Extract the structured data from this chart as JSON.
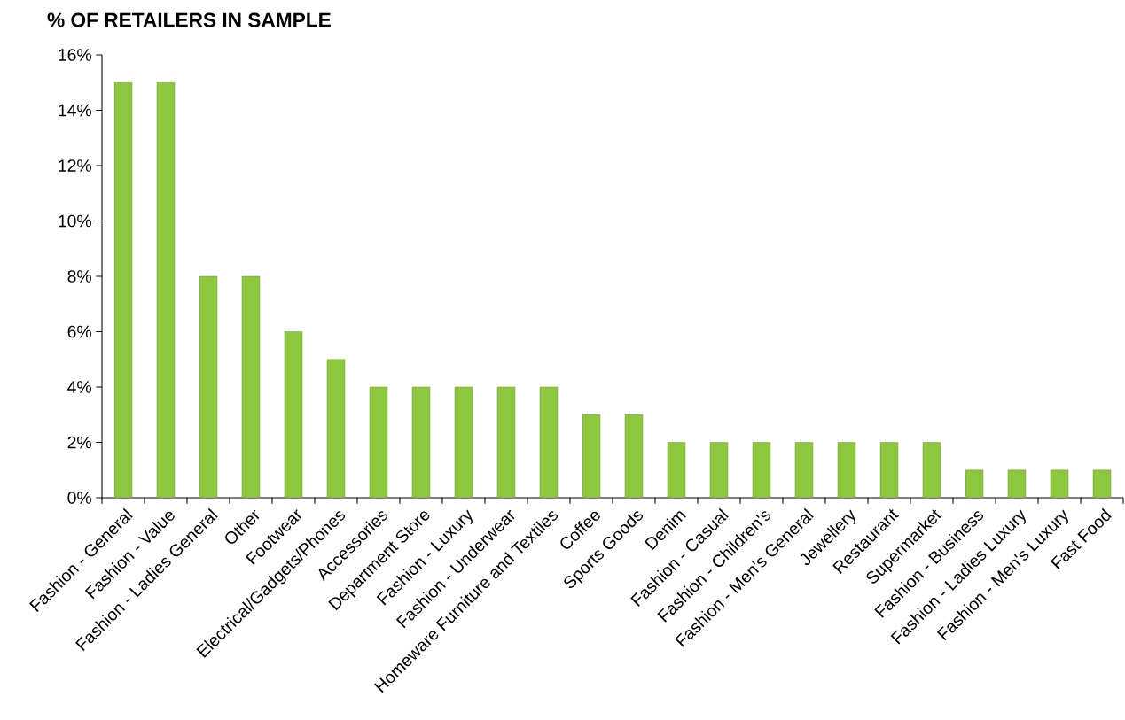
{
  "chart_data": {
    "type": "bar",
    "title": "% OF RETAILERS IN SAMPLE",
    "categories": [
      "Fashion - General",
      "Fashion - Value",
      "Fashion - Ladies General",
      "Other",
      "Footwear",
      "Electrical/Gadgets/Phones",
      "Accessories",
      "Department Store",
      "Fashion - Luxury",
      "Fashion - Underwear",
      "Homeware Furniture and Textiles",
      "Coffee",
      "Sports Goods",
      "Denim",
      "Fashion - Casual",
      "Fashion - Children's",
      "Fashion - Men's General",
      "Jewellery",
      "Restaurant",
      "Supermarket",
      "Fashion - Business",
      "Fashion - Ladies Luxury",
      "Fashion - Men's Luxury",
      "Fast Food"
    ],
    "values": [
      15,
      15,
      8,
      8,
      6,
      5,
      4,
      4,
      4,
      4,
      4,
      3,
      3,
      2,
      2,
      2,
      2,
      2,
      2,
      2,
      1,
      1,
      1,
      1
    ],
    "color": "#8dc63f",
    "ylim": [
      0,
      16
    ],
    "yticks": [
      {
        "value": 0,
        "label": "0%"
      },
      {
        "value": 2,
        "label": "2%"
      },
      {
        "value": 4,
        "label": "4%"
      },
      {
        "value": 6,
        "label": "6%"
      },
      {
        "value": 8,
        "label": "8%"
      },
      {
        "value": 10,
        "label": "10%"
      },
      {
        "value": 12,
        "label": "12%"
      },
      {
        "value": 14,
        "label": "14%"
      },
      {
        "value": 16,
        "label": "16%"
      }
    ],
    "grid": false
  }
}
